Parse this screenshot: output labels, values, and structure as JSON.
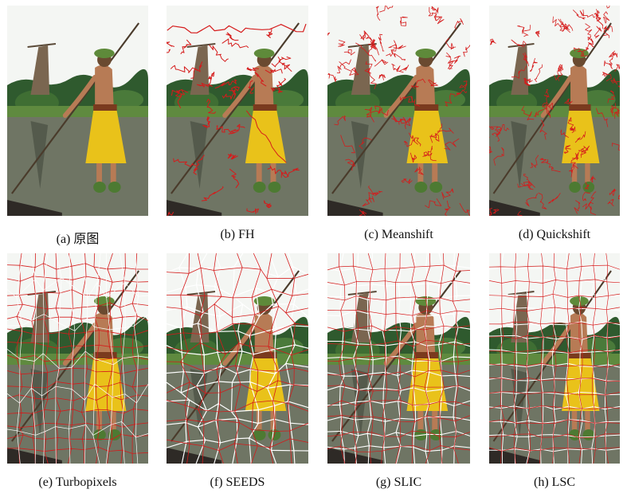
{
  "figure": {
    "panels": [
      {
        "id": "a",
        "caption": "(a)  原图",
        "overlay": "none"
      },
      {
        "id": "b",
        "caption": "(b) FH",
        "overlay": "fh"
      },
      {
        "id": "c",
        "caption": "(c) Meanshift",
        "overlay": "meanshift"
      },
      {
        "id": "d",
        "caption": "(d) Quickshift",
        "overlay": "quickshift"
      },
      {
        "id": "e",
        "caption": "(e) Turbopixels",
        "overlay": "grid-soft"
      },
      {
        "id": "f",
        "caption": "(f) SEEDS",
        "overlay": "seeds"
      },
      {
        "id": "g",
        "caption": "(g) SLIC",
        "overlay": "slic"
      },
      {
        "id": "h",
        "caption": "(h) LSC",
        "overlay": "lsc"
      }
    ],
    "colors": {
      "sky": "#f4f6f3",
      "water": "#6f7564",
      "grass": "#5f8a3f",
      "trees": "#2f5a2e",
      "skirt": "#e9c21a",
      "skin": "#b77b55",
      "boundary": "#d51b1b",
      "boundary_white": "#ffffff"
    }
  }
}
